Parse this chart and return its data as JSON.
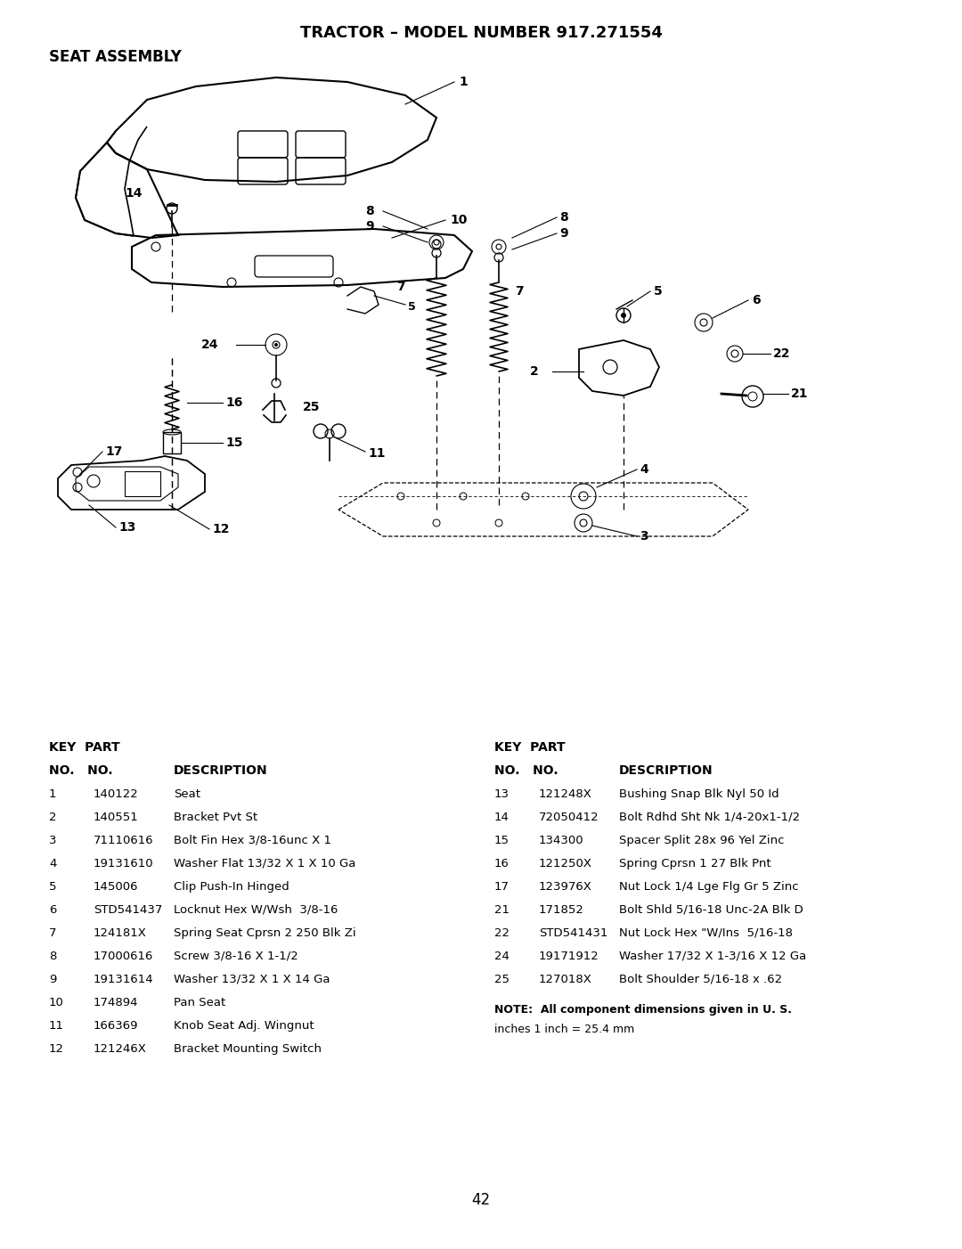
{
  "title": "TRACTOR – MODEL NUMBER 917.271554",
  "subtitle": "SEAT ASSEMBLY",
  "page_number": "42",
  "bg": "#ffffff",
  "fg": "#000000",
  "col1_parts": [
    [
      "1",
      "140122",
      "Seat"
    ],
    [
      "2",
      "140551",
      "Bracket Pvt St"
    ],
    [
      "3",
      "71110616",
      "Bolt Fin Hex 3/8-16unc X 1"
    ],
    [
      "4",
      "19131610",
      "Washer Flat 13/32 X 1 X 10 Ga"
    ],
    [
      "5",
      "145006",
      "Clip Push-In Hinged"
    ],
    [
      "6",
      "STD541437",
      "Locknut Hex W/Wsh  3/8-16"
    ],
    [
      "7",
      "124181X",
      "Spring Seat Cprsn 2 250 Blk Zi"
    ],
    [
      "8",
      "17000616",
      "Screw 3/8-16 X 1-1/2"
    ],
    [
      "9",
      "19131614",
      "Washer 13/32 X 1 X 14 Ga"
    ],
    [
      "10",
      "174894",
      "Pan Seat"
    ],
    [
      "11",
      "166369",
      "Knob Seat Adj. Wingnut"
    ],
    [
      "12",
      "121246X",
      "Bracket Mounting Switch"
    ]
  ],
  "col2_parts": [
    [
      "13",
      "121248X",
      "Bushing Snap Blk Nyl 50 Id"
    ],
    [
      "14",
      "72050412",
      "Bolt Rdhd Sht Nk 1/4-20x1-1/2"
    ],
    [
      "15",
      "134300",
      "Spacer Split 28x 96 Yel Zinc"
    ],
    [
      "16",
      "121250X",
      "Spring Cprsn 1 27 Blk Pnt"
    ],
    [
      "17",
      "123976X",
      "Nut Lock 1/4 Lge Flg Gr 5 Zinc"
    ],
    [
      "21",
      "171852",
      "Bolt Shld 5/16-18 Unc-2A Blk D"
    ],
    [
      "22",
      "STD541431",
      "Nut Lock Hex \"W/Ins  5/16-18"
    ],
    [
      "24",
      "19171912",
      "Washer 17/32 X 1-3/16 X 12 Ga"
    ],
    [
      "25",
      "127018X",
      "Bolt Shoulder 5/16-18 x .62"
    ]
  ],
  "note_line1": "NOTE:  All component dimensions given in U. S.",
  "note_line2": "inches 1 inch = 25.4 mm"
}
